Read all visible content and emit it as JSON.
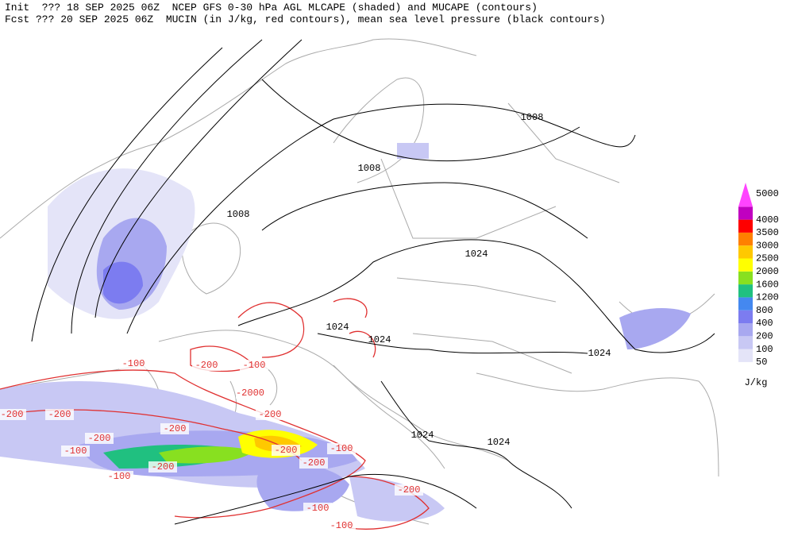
{
  "header": {
    "init": "Init  ??? 18 SEP 2025 06Z  NCEP GFS 0-30 hPa AGL MLCAPE (shaded) and MUCAPE (contours)",
    "fcst": "Fcst ??? 20 SEP 2025 06Z  MUCIN (in J/kg, red contours), mean sea level pressure (black contours)"
  },
  "legend": {
    "levels": [
      50,
      100,
      200,
      400,
      800,
      1200,
      1600,
      2000,
      2500,
      3000,
      3500,
      4000,
      5000
    ],
    "colors": [
      "#e4e4f8",
      "#c8c8f4",
      "#a8a8f0",
      "#7c7cf0",
      "#4488f0",
      "#20c080",
      "#88e020",
      "#ffff00",
      "#ffc800",
      "#ff8000",
      "#ff0000",
      "#c000c0",
      "#ff44ff"
    ],
    "unit": "J/kg"
  },
  "isobar_labels": [
    "1008",
    "1008",
    "1008",
    "1024",
    "1024",
    "1024",
    "1024",
    "1024",
    "1024"
  ],
  "cin_labels": [
    "-100",
    "-200",
    "-200",
    "-200",
    "-200",
    "-2000",
    "-200",
    "-100",
    "-200",
    "-100",
    "-200",
    "-100",
    "-200",
    "-200",
    "-100",
    "-100",
    "-200",
    "-100"
  ]
}
